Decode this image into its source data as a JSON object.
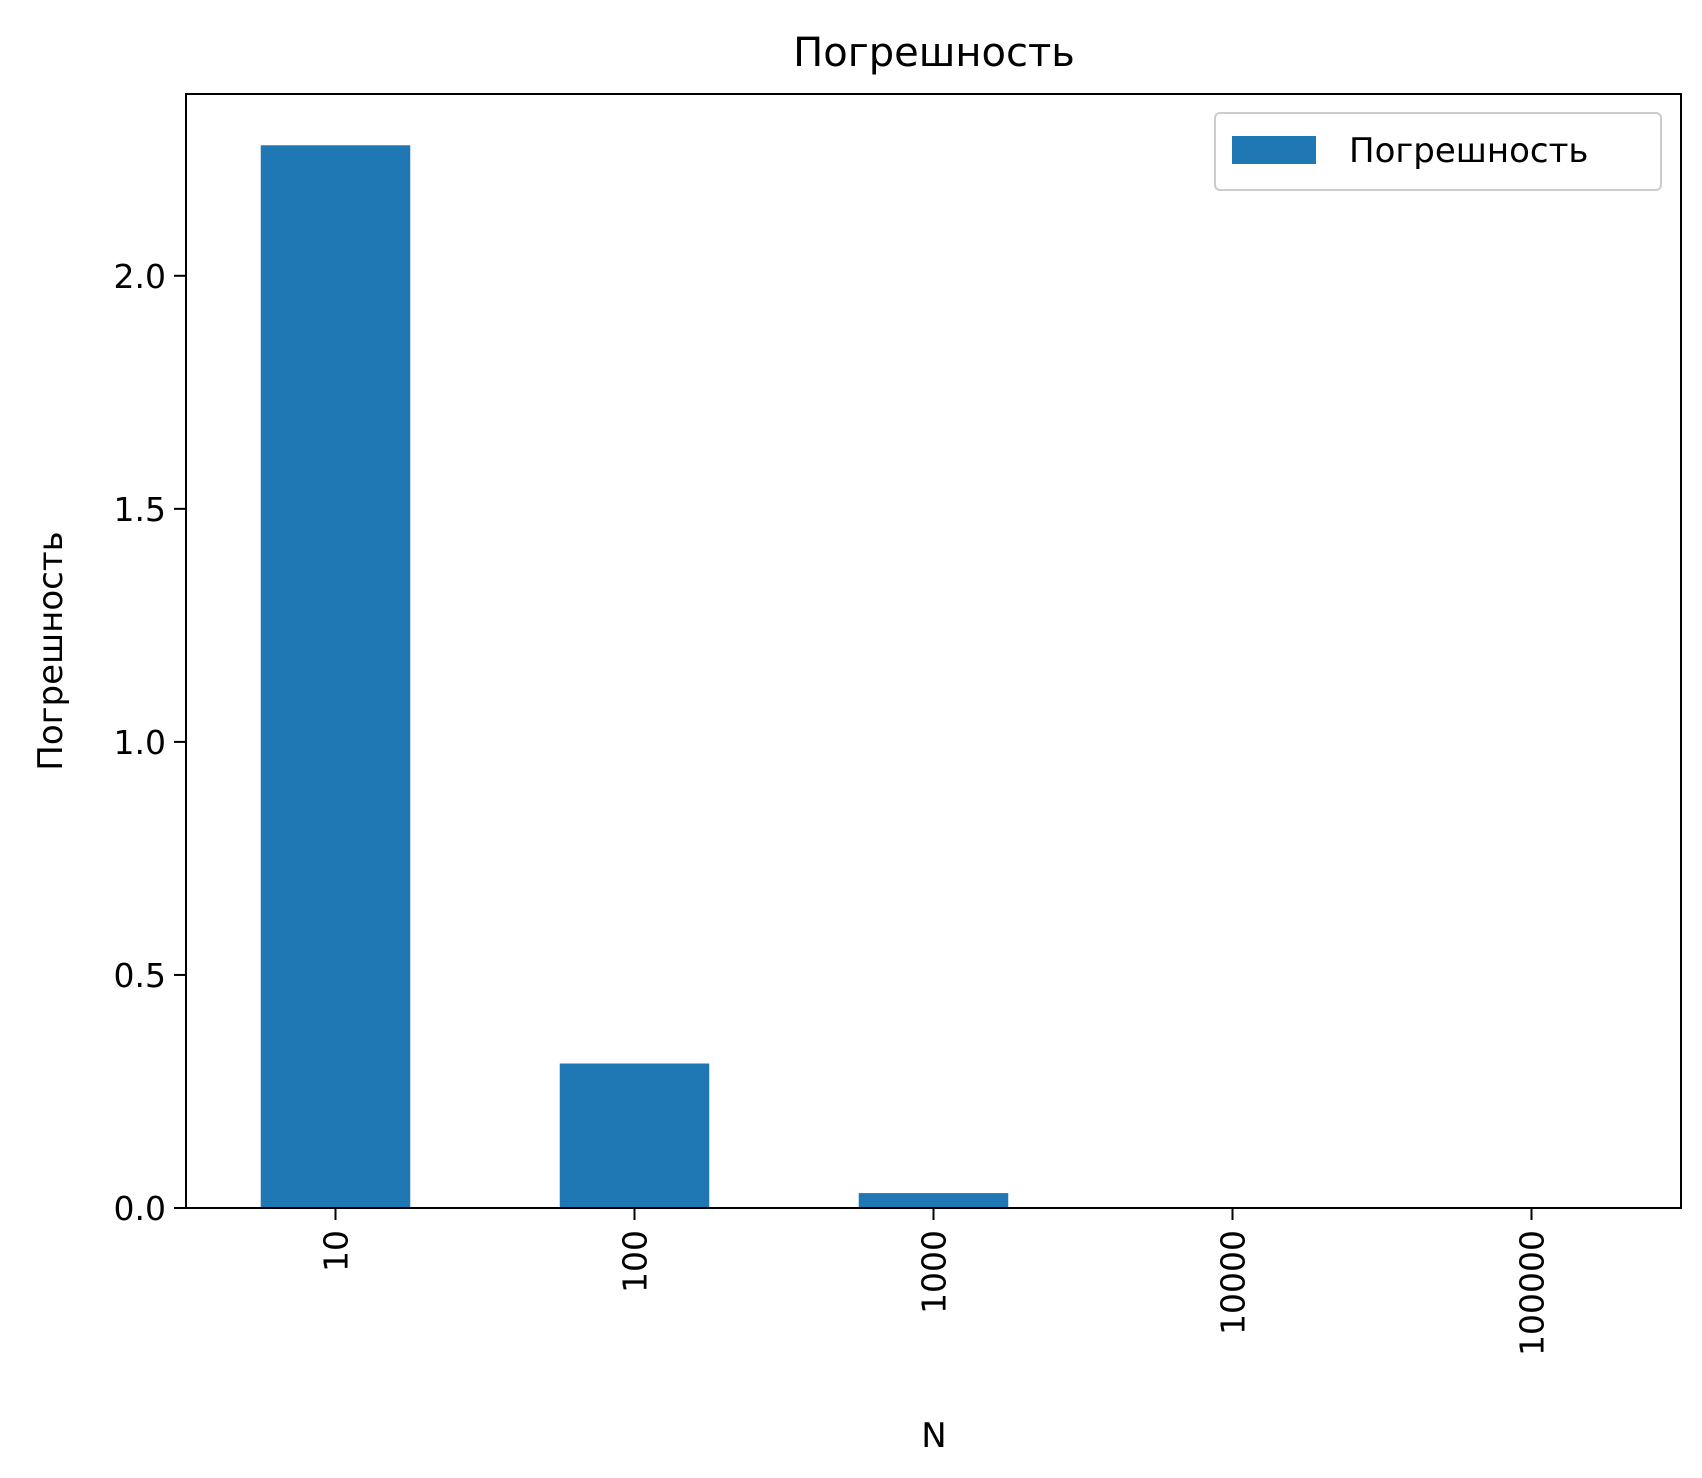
{
  "chart_data": {
    "type": "bar",
    "title": "Погрешность",
    "xlabel": "N",
    "ylabel": "Погрешность",
    "categories": [
      "10",
      "100",
      "1000",
      "10000",
      "100000"
    ],
    "series": [
      {
        "name": "Погрешность",
        "values": [
          2.28,
          0.31,
          0.032,
          0.0,
          0.0
        ]
      }
    ],
    "yticks": [
      "0.0",
      "0.5",
      "1.0",
      "1.5",
      "2.0"
    ],
    "ylim": [
      0,
      2.39
    ],
    "grid": false,
    "legend": "top-right",
    "colors": {
      "bar": "#1f77b4"
    }
  }
}
